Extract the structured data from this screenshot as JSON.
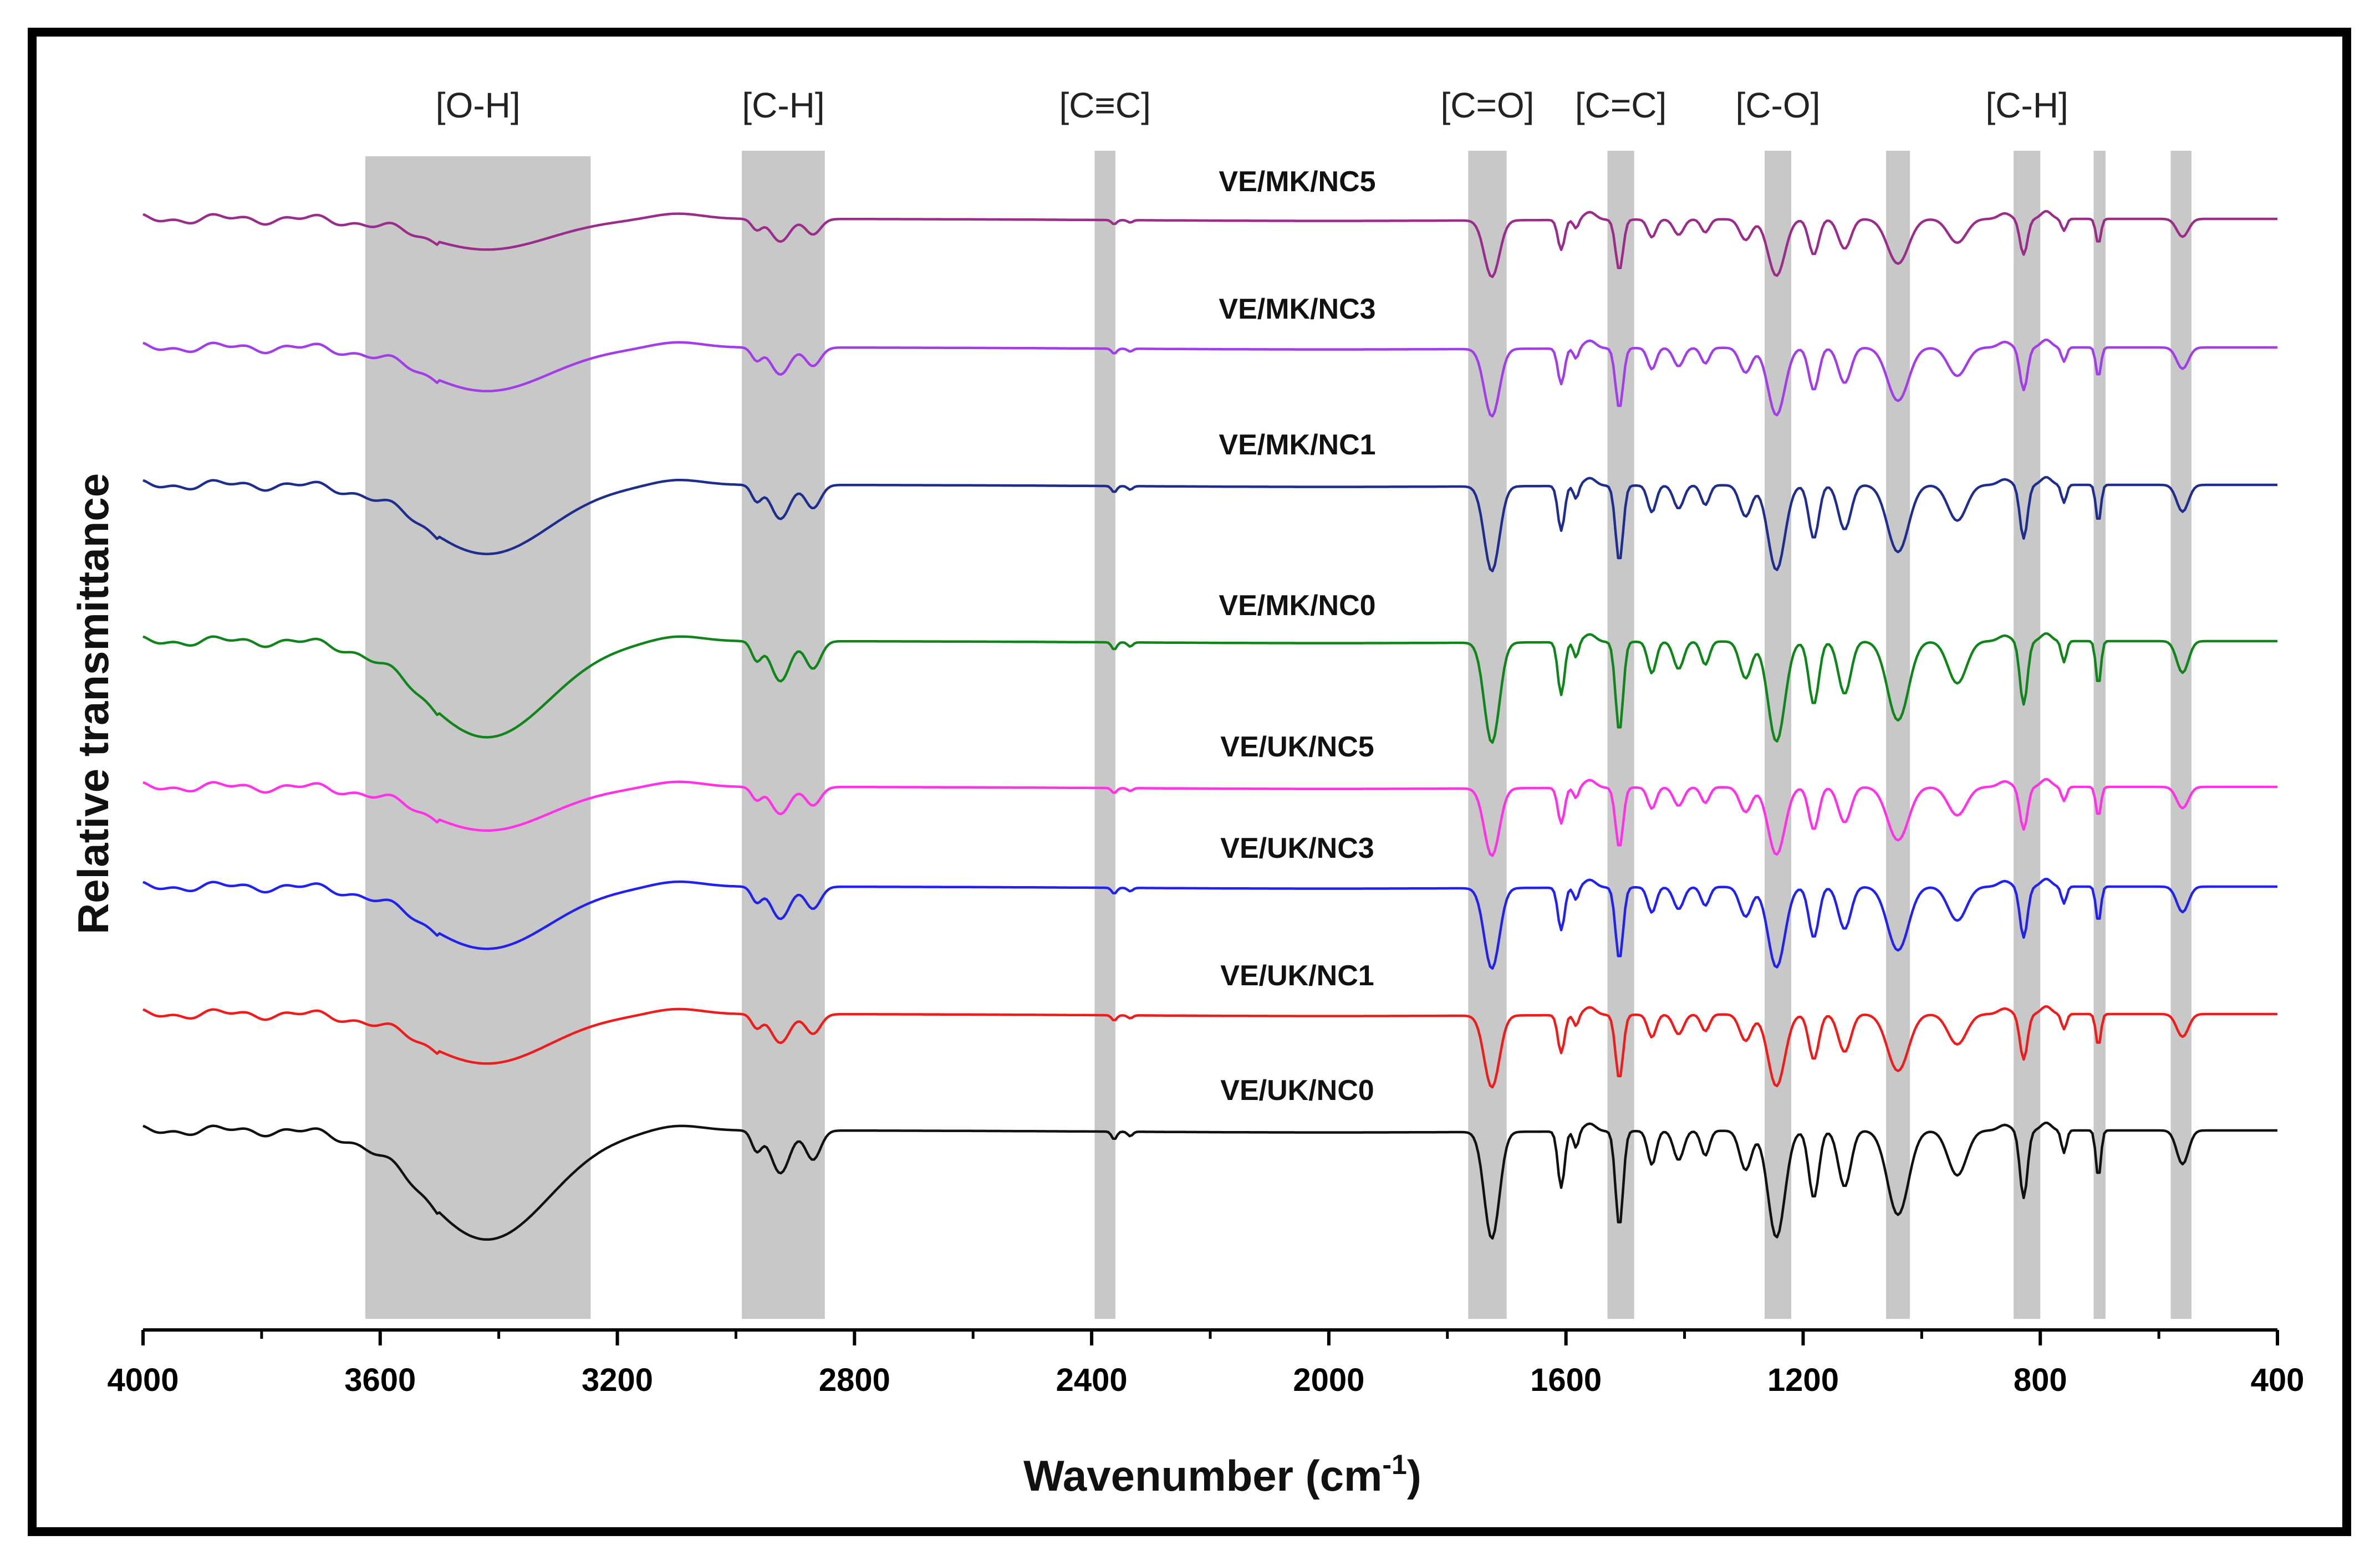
{
  "chart_data": {
    "type": "line",
    "title": "",
    "xlabel": "Wavenumber (cm",
    "xlabel_sup": "-1",
    "xlabel_close": ")",
    "ylabel": "Relative transmittance",
    "xlim": [
      4000,
      400
    ],
    "x_reversed": true,
    "grid": false,
    "ticks": [
      "4000",
      "3600",
      "3200",
      "2800",
      "2400",
      "2000",
      "1600",
      "1200",
      "800",
      "400"
    ],
    "tick_values": [
      4000,
      3600,
      3200,
      2800,
      2400,
      2000,
      1600,
      1200,
      800,
      400
    ],
    "shaded_regions": [
      {
        "label": "[O-H]",
        "from": 3625,
        "to": 3245
      },
      {
        "label": "[C-H]",
        "from": 2990,
        "to": 2850
      },
      {
        "label": "[C≡C]",
        "from": 2395,
        "to": 2360
      },
      {
        "label": "[C=O]",
        "from": 1765,
        "to": 1700
      },
      {
        "label": "[C=C]",
        "from": 1530,
        "to": 1485
      },
      {
        "label": "[C-O]",
        "from": 1265,
        "to": 1220
      },
      {
        "label": "",
        "from": 1060,
        "to": 1020
      },
      {
        "label": "[C-H]",
        "from": 845,
        "to": 800
      },
      {
        "label": "",
        "from": 710,
        "to": 690
      },
      {
        "label": "",
        "from": 580,
        "to": 545
      }
    ],
    "series": [
      {
        "name": "VE/MK/NC5",
        "color": "#9b2d8a",
        "depth": 0.52
      },
      {
        "name": "VE/MK/NC3",
        "color": "#a23ee8",
        "depth": 0.62
      },
      {
        "name": "VE/MK/NC1",
        "color": "#1f2d8c",
        "depth": 0.78
      },
      {
        "name": "VE/MK/NC0",
        "color": "#11851c",
        "depth": 0.92
      },
      {
        "name": "VE/UK/NC5",
        "color": "#ff33e6",
        "depth": 0.62
      },
      {
        "name": "VE/UK/NC3",
        "color": "#2222ee",
        "depth": 0.74
      },
      {
        "name": "VE/UK/NC1",
        "color": "#ee1c1c",
        "depth": 0.66
      },
      {
        "name": "VE/UK/NC0",
        "color": "#111111",
        "depth": 0.98
      }
    ],
    "spectrum_features": [
      {
        "center": 3420,
        "width": 150,
        "strength": 1.0
      },
      {
        "center": 2925,
        "width": 22,
        "strength": 0.38
      },
      {
        "center": 2870,
        "width": 18,
        "strength": 0.26
      },
      {
        "center": 2965,
        "width": 12,
        "strength": 0.18
      },
      {
        "center": 2362,
        "width": 6,
        "strength": 0.07
      },
      {
        "center": 2335,
        "width": 6,
        "strength": 0.04
      },
      {
        "center": 1725,
        "width": 18,
        "strength": 0.95
      },
      {
        "center": 1608,
        "width": 8,
        "strength": 0.5
      },
      {
        "center": 1583,
        "width": 6,
        "strength": 0.15
      },
      {
        "center": 1510,
        "width": 9,
        "strength": 0.85
      },
      {
        "center": 1455,
        "width": 10,
        "strength": 0.3
      },
      {
        "center": 1410,
        "width": 12,
        "strength": 0.26
      },
      {
        "center": 1365,
        "width": 10,
        "strength": 0.22
      },
      {
        "center": 1297,
        "width": 14,
        "strength": 0.35
      },
      {
        "center": 1245,
        "width": 20,
        "strength": 0.95
      },
      {
        "center": 1182,
        "width": 12,
        "strength": 0.6
      },
      {
        "center": 1130,
        "width": 15,
        "strength": 0.5
      },
      {
        "center": 1040,
        "width": 25,
        "strength": 0.75
      },
      {
        "center": 940,
        "width": 22,
        "strength": 0.4
      },
      {
        "center": 828,
        "width": 9,
        "strength": 0.6
      },
      {
        "center": 760,
        "width": 6,
        "strength": 0.2
      },
      {
        "center": 702,
        "width": 6,
        "strength": 0.42
      },
      {
        "center": 560,
        "width": 14,
        "strength": 0.3
      }
    ]
  }
}
